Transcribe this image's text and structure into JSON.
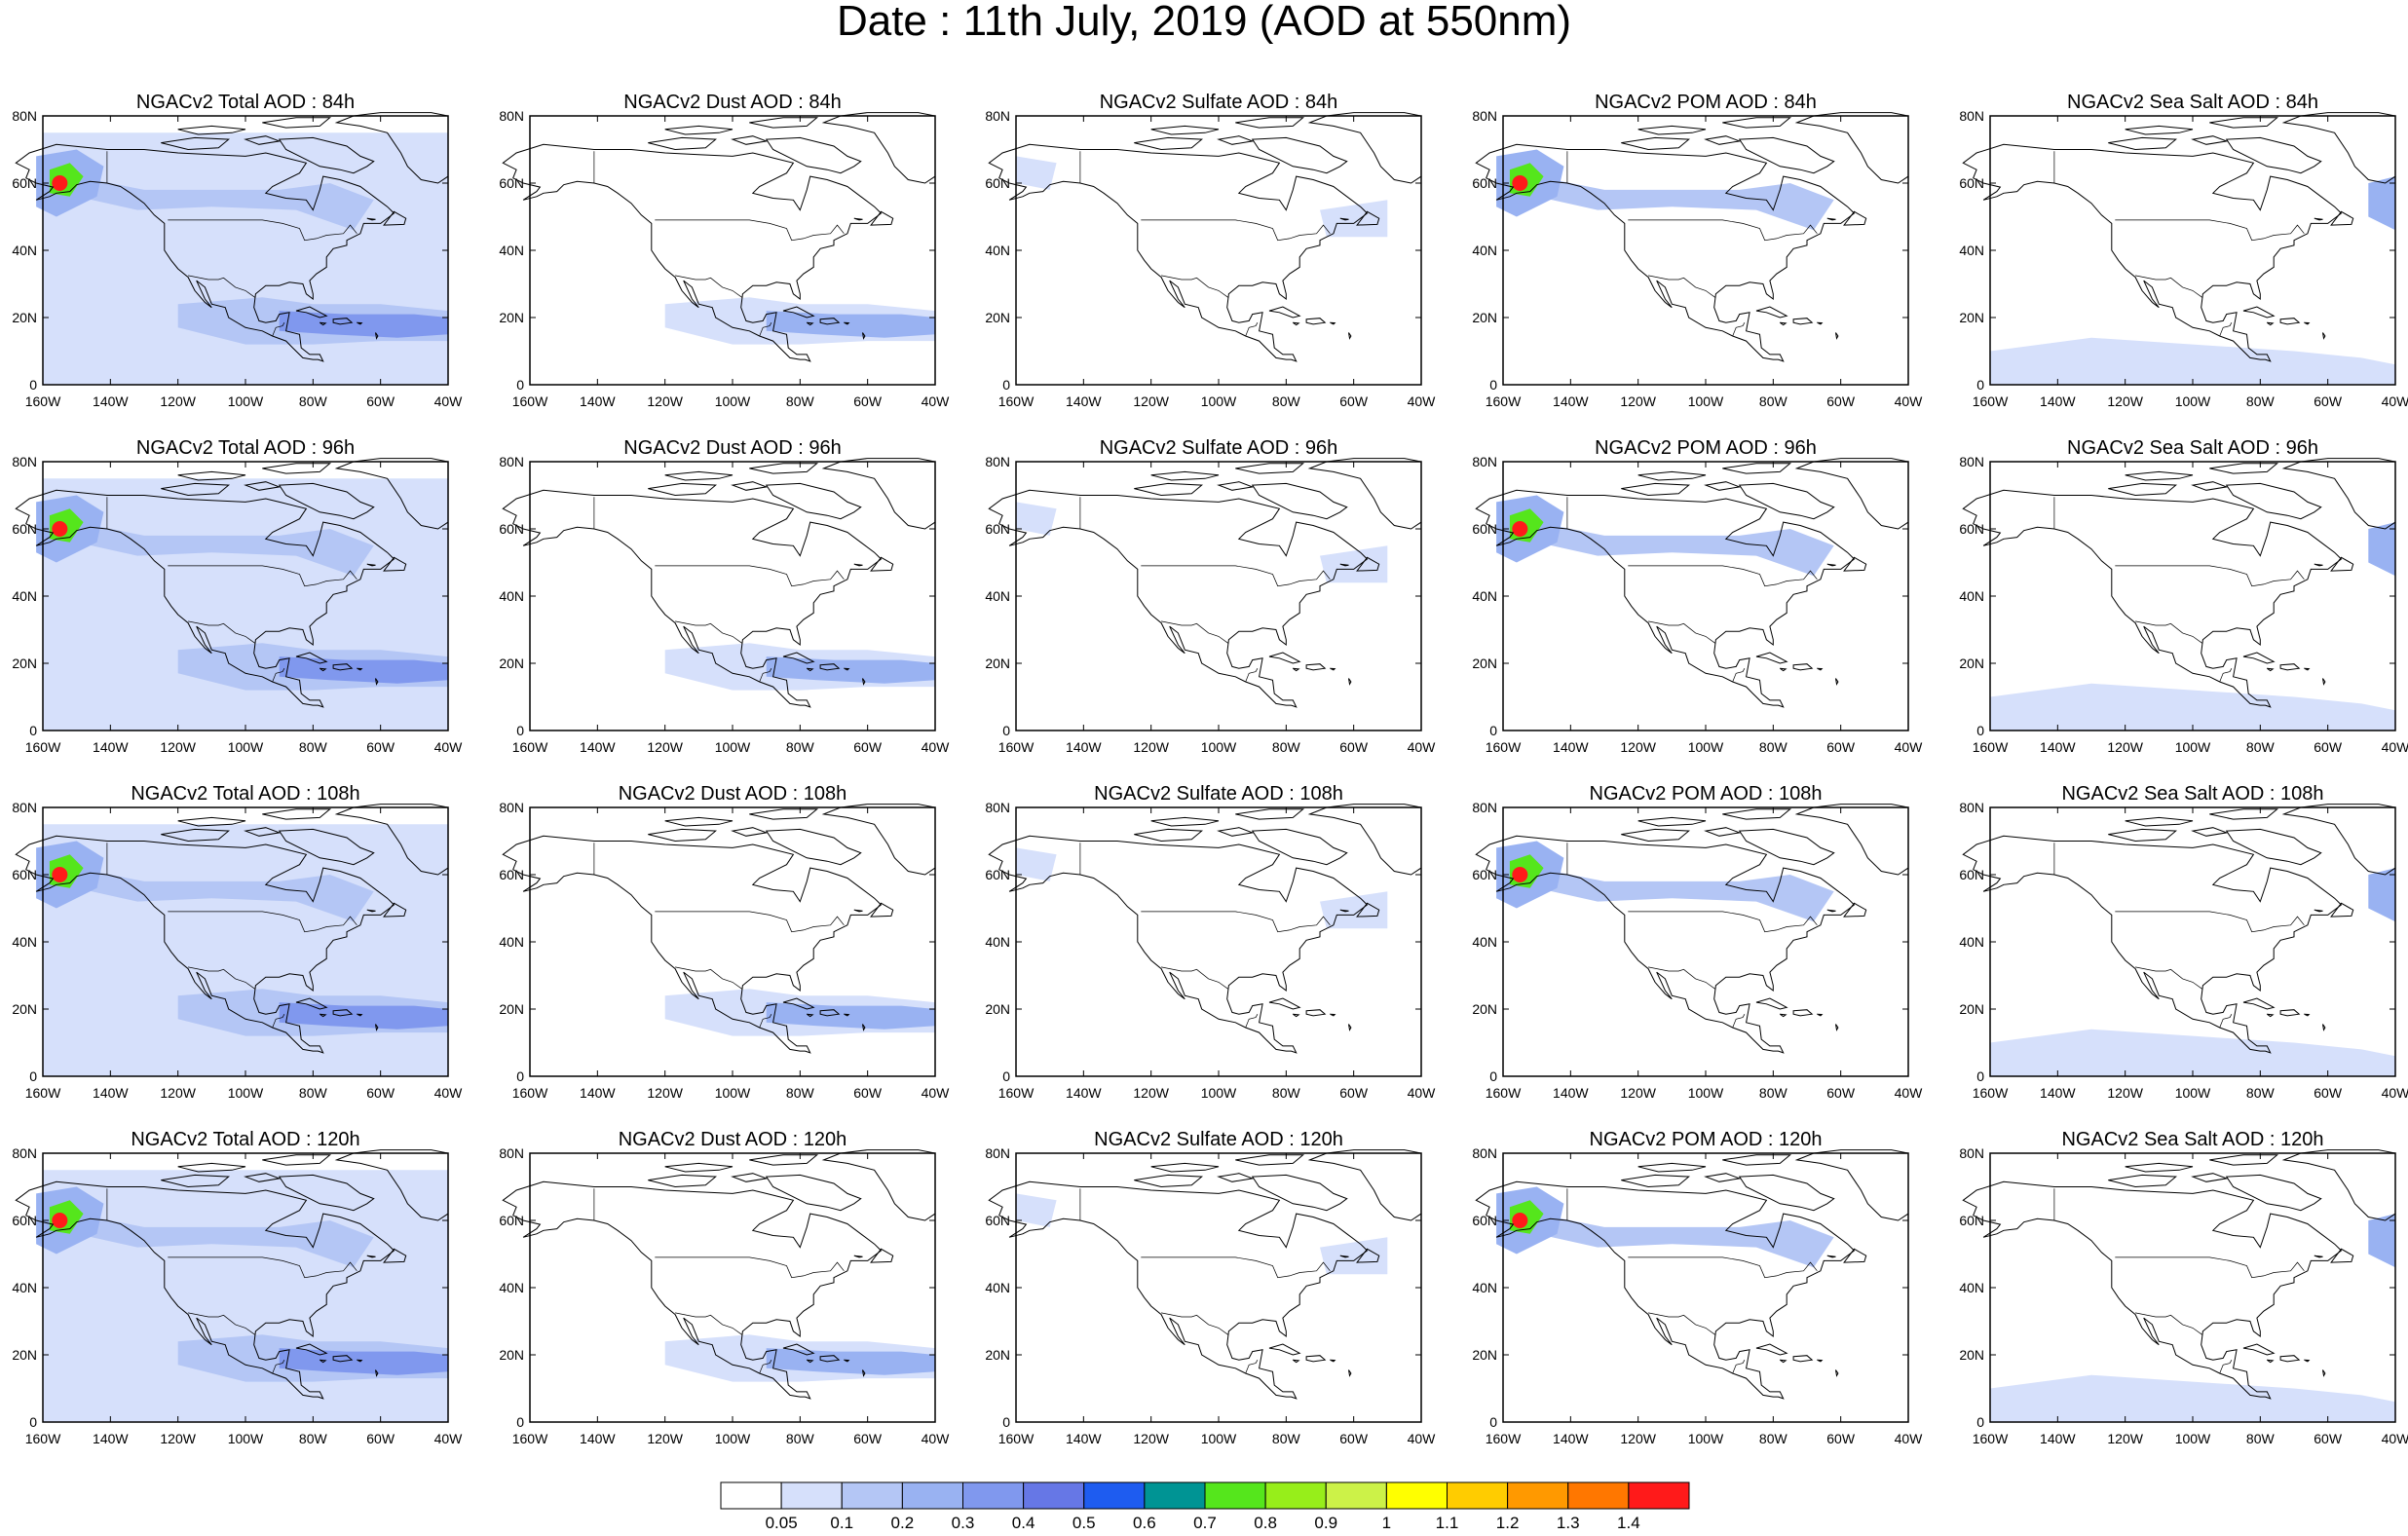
{
  "title": "Date : 11th July, 2019 (AOD at 550nm)",
  "map_axes": {
    "lat_labels": [
      "0",
      "20N",
      "40N",
      "60N",
      "80N"
    ],
    "lon_labels": [
      "160W",
      "140W",
      "120W",
      "100W",
      "80W",
      "60W",
      "40W"
    ]
  },
  "panels": [
    {
      "title": "NGACv2 Total AOD : 84h",
      "species": "total",
      "forecast_hour": 84
    },
    {
      "title": "NGACv2 Dust AOD : 84h",
      "species": "dust",
      "forecast_hour": 84
    },
    {
      "title": "NGACv2 Sulfate AOD : 84h",
      "species": "sulfate",
      "forecast_hour": 84
    },
    {
      "title": "NGACv2 POM AOD : 84h",
      "species": "pom",
      "forecast_hour": 84
    },
    {
      "title": "NGACv2 Sea Salt AOD : 84h",
      "species": "seasalt",
      "forecast_hour": 84
    },
    {
      "title": "NGACv2 Total AOD : 96h",
      "species": "total",
      "forecast_hour": 96
    },
    {
      "title": "NGACv2 Dust AOD : 96h",
      "species": "dust",
      "forecast_hour": 96
    },
    {
      "title": "NGACv2 Sulfate AOD : 96h",
      "species": "sulfate",
      "forecast_hour": 96
    },
    {
      "title": "NGACv2 POM AOD : 96h",
      "species": "pom",
      "forecast_hour": 96
    },
    {
      "title": "NGACv2 Sea Salt AOD : 96h",
      "species": "seasalt",
      "forecast_hour": 96
    },
    {
      "title": "NGACv2 Total AOD : 108h",
      "species": "total",
      "forecast_hour": 108
    },
    {
      "title": "NGACv2 Dust AOD : 108h",
      "species": "dust",
      "forecast_hour": 108
    },
    {
      "title": "NGACv2 Sulfate AOD : 108h",
      "species": "sulfate",
      "forecast_hour": 108
    },
    {
      "title": "NGACv2 POM AOD : 108h",
      "species": "pom",
      "forecast_hour": 108
    },
    {
      "title": "NGACv2 Sea Salt AOD : 108h",
      "species": "seasalt",
      "forecast_hour": 108
    },
    {
      "title": "NGACv2 Total AOD : 120h",
      "species": "total",
      "forecast_hour": 120
    },
    {
      "title": "NGACv2 Dust AOD : 120h",
      "species": "dust",
      "forecast_hour": 120
    },
    {
      "title": "NGACv2 Sulfate AOD : 120h",
      "species": "sulfate",
      "forecast_hour": 120
    },
    {
      "title": "NGACv2 POM AOD : 120h",
      "species": "pom",
      "forecast_hour": 120
    },
    {
      "title": "NGACv2 Sea Salt  AOD : 120h",
      "species": "seasalt",
      "forecast_hour": 120
    }
  ],
  "colorbar": {
    "levels": [
      "0.05",
      "0.1",
      "0.2",
      "0.3",
      "0.4",
      "0.5",
      "0.6",
      "0.7",
      "0.8",
      "0.9",
      "1",
      "1.1",
      "1.2",
      "1.3",
      "1.4"
    ],
    "colors": [
      "#ffffff",
      "#d6e0fb",
      "#b4c6f5",
      "#99b2f2",
      "#8098ee",
      "#6677e6",
      "#1e5cf0",
      "#009494",
      "#55e61c",
      "#97ee1a",
      "#ccf248",
      "#ffff00",
      "#ffcc00",
      "#ff9900",
      "#ff7700",
      "#ff1a1a"
    ]
  }
}
